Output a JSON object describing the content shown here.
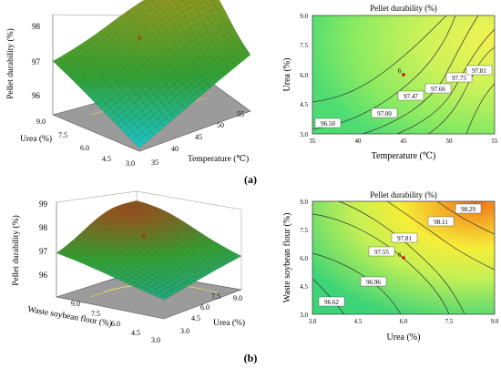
{
  "panel_labels": [
    "(a)",
    "(b)"
  ],
  "chart_data": [
    {
      "type": "surface3d",
      "zlabel": "Pellet durability (%)",
      "xlabel": "Urea (%)",
      "ylabel": "Temperature (℃)",
      "x_ticks": [
        "9.0",
        "7.5",
        "6.0",
        "4.5",
        "3.0"
      ],
      "y_ticks": [
        "35",
        "40",
        "45",
        "50",
        "55"
      ],
      "z_ticks": [
        "96",
        "97",
        "98"
      ],
      "x_range": [
        3.0,
        9.0
      ],
      "y_range": [
        35,
        55
      ],
      "zlim": [
        95.2,
        98
      ],
      "corner_values": {
        "urea3_temp35": 95.3,
        "urea9_temp35": 96.8,
        "urea9_temp55": 97.8,
        "urea3_temp55": 96.9
      },
      "peak": {
        "urea": 7.5,
        "temperature": 49,
        "value": 98.0
      },
      "marker_label": "6",
      "colors": {
        "low": "#18c8d8",
        "mid": "#30a030",
        "high": "#8a9a20"
      }
    },
    {
      "type": "contour",
      "title": "Pellet durability (%)",
      "xlabel": "Temperature (℃)",
      "ylabel": "Urea (%)",
      "x_ticks": [
        "35",
        "40",
        "45",
        "50",
        "55"
      ],
      "y_ticks": [
        "3.0",
        "4.5",
        "6.0",
        "7.5",
        "9.0"
      ],
      "x_range": [
        35,
        55
      ],
      "y_range": [
        3.0,
        9.0
      ],
      "contour_labels": [
        "96.50",
        "97.00",
        "97.47",
        "97.66",
        "97.75",
        "97.81"
      ],
      "contour_levels": [
        96.5,
        97.0,
        97.47,
        97.66,
        97.75,
        97.81
      ],
      "design_point": {
        "x": 45,
        "y": 6.0,
        "label": "6"
      },
      "colors": {
        "low": "#5ce06c",
        "mid": "#c6f25a",
        "high": "#f4f250"
      }
    },
    {
      "type": "surface3d",
      "zlabel": "Pellet durability (%)",
      "xlabel": "Waste soybean flour (%)",
      "ylabel": "Urea (%)",
      "x_ticks": [
        "9.0",
        "7.5",
        "6.0",
        "4.5",
        "3.0"
      ],
      "y_ticks": [
        "3.0",
        "4.5",
        "6.0",
        "7.5",
        "9.0"
      ],
      "z_ticks": [
        "96",
        "97",
        "98",
        "99"
      ],
      "x_range": [
        3.0,
        9.0
      ],
      "y_range": [
        3.0,
        9.0
      ],
      "zlim": [
        95.5,
        99
      ],
      "corner_values": {
        "wsf9_urea3": 97.3,
        "wsf3_urea3": 96.3,
        "wsf3_urea9": 96.9,
        "wsf9_urea9": 98.2
      },
      "peak": {
        "wsf": 7.5,
        "urea": 7.0,
        "value": 98.4
      },
      "marker_label": "6",
      "colors": {
        "low": "#18b8c8",
        "mid": "#30a030",
        "high": "#c83010"
      }
    },
    {
      "type": "contour",
      "title": "Pellet durability (%)",
      "xlabel": "Urea (%)",
      "ylabel": "Waste soybean flour (%)",
      "x_ticks": [
        "3.0",
        "4.5",
        "6.0",
        "7.5",
        "9.0"
      ],
      "y_ticks": [
        "3.0",
        "4.5",
        "6.0",
        "7.5",
        "9.0"
      ],
      "x_range": [
        3.0,
        9.0
      ],
      "y_range": [
        3.0,
        9.0
      ],
      "contour_labels": [
        "96.62",
        "96.96",
        "97.55",
        "97.81",
        "98.11",
        "98.29"
      ],
      "contour_levels": [
        96.62,
        96.96,
        97.55,
        97.81,
        98.11,
        98.29
      ],
      "design_point": {
        "x": 6.0,
        "y": 6.0,
        "label": "6"
      },
      "colors": {
        "low": "#36d678",
        "mid": "#f6f040",
        "high": "#f07a14"
      }
    }
  ]
}
